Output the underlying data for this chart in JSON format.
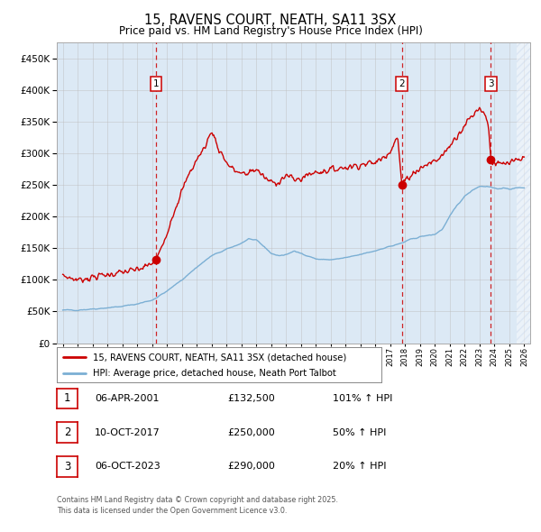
{
  "title": "15, RAVENS COURT, NEATH, SA11 3SX",
  "subtitle": "Price paid vs. HM Land Registry's House Price Index (HPI)",
  "legend_line1": "15, RAVENS COURT, NEATH, SA11 3SX (detached house)",
  "legend_line2": "HPI: Average price, detached house, Neath Port Talbot",
  "table_entries": [
    {
      "num": 1,
      "date": "06-APR-2001",
      "price": "£132,500",
      "hpi": "101% ↑ HPI"
    },
    {
      "num": 2,
      "date": "10-OCT-2017",
      "price": "£250,000",
      "hpi": "50% ↑ HPI"
    },
    {
      "num": 3,
      "date": "06-OCT-2023",
      "price": "£290,000",
      "hpi": "20% ↑ HPI"
    }
  ],
  "footnote_line1": "Contains HM Land Registry data © Crown copyright and database right 2025.",
  "footnote_line2": "This data is licensed under the Open Government Licence v3.0.",
  "sale_dates_num": [
    2001.27,
    2017.78,
    2023.76
  ],
  "sale_prices": [
    132500,
    250000,
    290000
  ],
  "ylim": [
    0,
    475000
  ],
  "yticks": [
    0,
    50000,
    100000,
    150000,
    200000,
    250000,
    300000,
    350000,
    400000,
    450000
  ],
  "xlim_start": 1994.6,
  "xlim_end": 2026.4,
  "background_color": "#dce9f5",
  "grid_color": "#bbbbbb",
  "red_line_color": "#cc0000",
  "blue_line_color": "#7bafd4",
  "vline_color": "#cc0000",
  "dot_color": "#cc0000",
  "box_edge_color": "#cc0000",
  "hatch_start": 2025.5
}
